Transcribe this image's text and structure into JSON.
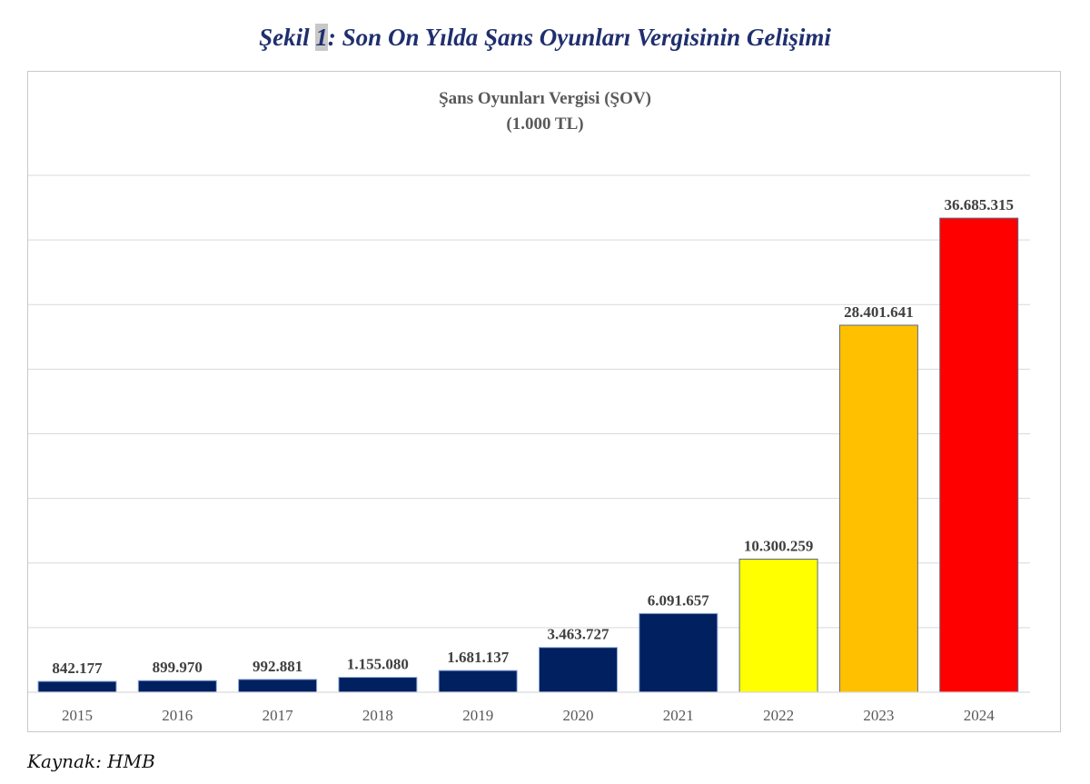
{
  "figure": {
    "title_prefix": "Şekil ",
    "title_number": "1",
    "title_suffix": ": Son On Yılda Şans Oyunları Vergisinin Gelişimi",
    "source": "Kaynak: HMB"
  },
  "chart_data": {
    "type": "bar",
    "title": "Şans Oyunları Vergisi  (ŞOV)",
    "subtitle": "(1.000 TL)",
    "xlabel": "",
    "ylabel": "",
    "categories": [
      "2015",
      "2016",
      "2017",
      "2018",
      "2019",
      "2020",
      "2021",
      "2022",
      "2023",
      "2024"
    ],
    "values": [
      842177,
      899970,
      992881,
      1155080,
      1681137,
      3463727,
      6091657,
      10300259,
      28401641,
      36685315
    ],
    "data_labels": [
      "842.177",
      "899.970",
      "992.881",
      "1.155.080",
      "1.681.137",
      "3.463.727",
      "6.091.657",
      "10.300.259",
      "28.401.641",
      "36.685.315"
    ],
    "colors": [
      "#002060",
      "#002060",
      "#002060",
      "#002060",
      "#002060",
      "#002060",
      "#002060",
      "#ffff00",
      "#ffc000",
      "#ff0000"
    ],
    "ylim": [
      0,
      40000000
    ],
    "y_grid_step": 5000000,
    "grid": true,
    "y_tick_labels_visible": false,
    "legend": "none"
  }
}
